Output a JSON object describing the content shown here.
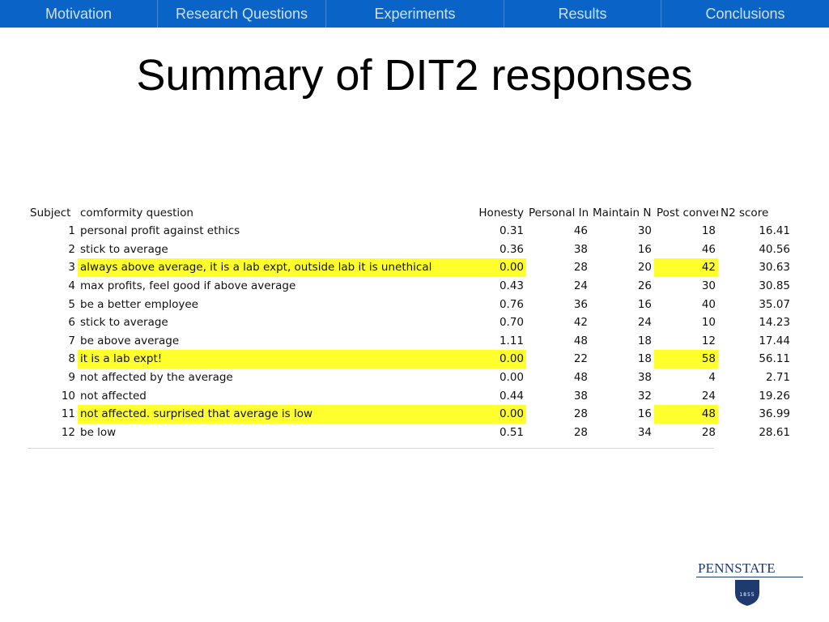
{
  "nav": {
    "items": [
      {
        "label": "Motivation"
      },
      {
        "label": "Research Questions"
      },
      {
        "label": "Experiments"
      },
      {
        "label": "Results"
      },
      {
        "label": "Conclusions"
      }
    ]
  },
  "slide": {
    "title": "Summary of DIT2 responses"
  },
  "table": {
    "headers": [
      "Subject",
      "comformity question",
      "Honesty",
      "Personal In",
      "Maintain N",
      "Post conver",
      "N2 score"
    ],
    "rows": [
      {
        "subject": "1",
        "question": "personal profit against ethics",
        "honesty": "0.31",
        "personal": "46",
        "maintain": "30",
        "post": "18",
        "n2": "16.41",
        "highlight": false
      },
      {
        "subject": "2",
        "question": "stick to average",
        "honesty": "0.36",
        "personal": "38",
        "maintain": "16",
        "post": "46",
        "n2": "40.56",
        "highlight": false
      },
      {
        "subject": "3",
        "question": "always above average, it is a lab expt, outside lab it is unethical",
        "honesty": "0.00",
        "personal": "28",
        "maintain": "20",
        "post": "42",
        "n2": "30.63",
        "highlight": true
      },
      {
        "subject": "4",
        "question": "max profits, feel good if above average",
        "honesty": "0.43",
        "personal": "24",
        "maintain": "26",
        "post": "30",
        "n2": "30.85",
        "highlight": false
      },
      {
        "subject": "5",
        "question": "be a better employee",
        "honesty": "0.76",
        "personal": "36",
        "maintain": "16",
        "post": "40",
        "n2": "35.07",
        "highlight": false
      },
      {
        "subject": "6",
        "question": "stick to average",
        "honesty": "0.70",
        "personal": "42",
        "maintain": "24",
        "post": "10",
        "n2": "14.23",
        "highlight": false
      },
      {
        "subject": "7",
        "question": "be above average",
        "honesty": "1.11",
        "personal": "48",
        "maintain": "18",
        "post": "12",
        "n2": "17.44",
        "highlight": false
      },
      {
        "subject": "8",
        "question": "it is a lab expt!",
        "honesty": "0.00",
        "personal": "22",
        "maintain": "18",
        "post": "58",
        "n2": "56.11",
        "highlight": true
      },
      {
        "subject": "9",
        "question": "not affected by the average",
        "honesty": "0.00",
        "personal": "48",
        "maintain": "38",
        "post": "4",
        "n2": "2.71",
        "highlight": false
      },
      {
        "subject": "10",
        "question": "not affected",
        "honesty": "0.44",
        "personal": "38",
        "maintain": "32",
        "post": "24",
        "n2": "19.26",
        "highlight": false
      },
      {
        "subject": "11",
        "question": "not affected. surprised that average is low",
        "honesty": "0.00",
        "personal": "28",
        "maintain": "16",
        "post": "48",
        "n2": "36.99",
        "highlight": true
      },
      {
        "subject": "12",
        "question": "be low",
        "honesty": "0.51",
        "personal": "28",
        "maintain": "34",
        "post": "28",
        "n2": "28.61",
        "highlight": false
      }
    ]
  },
  "logo": {
    "text": "PENNSTATE",
    "year": "1855"
  },
  "colors": {
    "nav_bg": "#0a64c8",
    "highlight": "#ffff2e",
    "logo": "#1f3a6e"
  }
}
